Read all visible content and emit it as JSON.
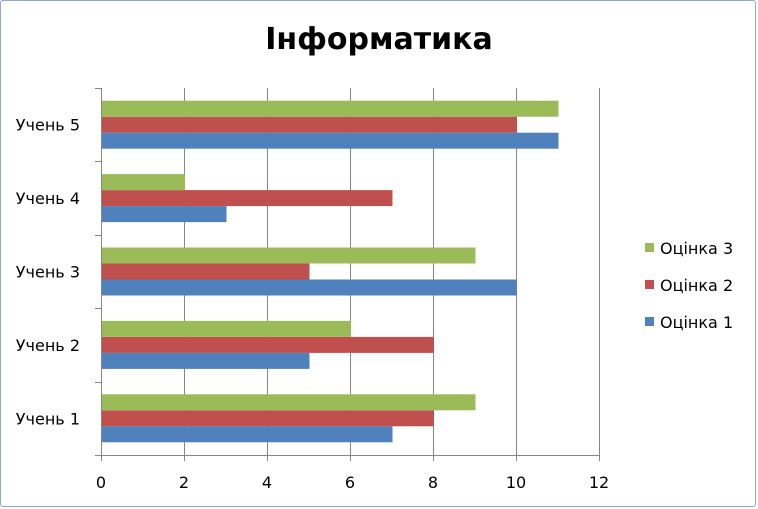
{
  "chart_data": {
    "type": "bar",
    "orientation": "horizontal",
    "title": "Інформатика",
    "categories": [
      "Учень 1",
      "Учень 2",
      "Учень 3",
      "Учень 4",
      "Учень 5"
    ],
    "series": [
      {
        "name": "Оцінка 1",
        "color": "#4f81bd",
        "values": [
          7,
          5,
          10,
          3,
          11
        ]
      },
      {
        "name": "Оцінка 2",
        "color": "#c0504d",
        "values": [
          8,
          8,
          5,
          7,
          10
        ]
      },
      {
        "name": "Оцінка 3",
        "color": "#9bbb59",
        "values": [
          9,
          6,
          9,
          2,
          11
        ]
      }
    ],
    "xlim": [
      0,
      12
    ],
    "xticks": [
      "0",
      "2",
      "4",
      "6",
      "8",
      "10",
      "12"
    ],
    "grid": "vertical major gridlines",
    "legend": [
      "Оцінка 3",
      "Оцінка 2",
      "Оцінка 1"
    ],
    "legend_position": "right"
  }
}
